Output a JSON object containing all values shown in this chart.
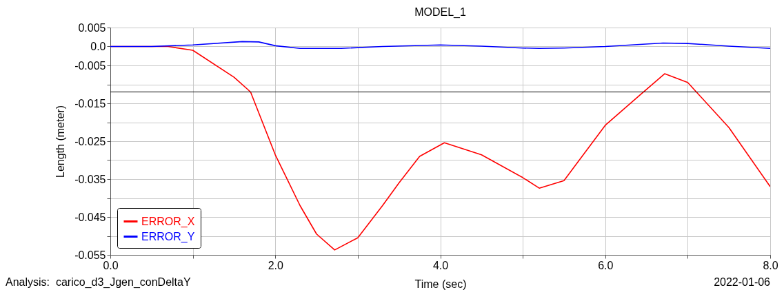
{
  "chart_data": {
    "type": "line",
    "title": "MODEL_1",
    "xlabel": "Time (sec)",
    "ylabel": "Length (meter)",
    "annotations": [
      "Analysis:  carico_d3_Jgen_conDeltaY",
      "2022-01-06"
    ],
    "xlim": [
      0,
      8
    ],
    "ylim": [
      -0.055,
      0.005
    ],
    "xticks": [
      {
        "value": 0,
        "label": "0.0"
      },
      {
        "value": 1,
        "label": null
      },
      {
        "value": 2,
        "label": "2.0"
      },
      {
        "value": 3,
        "label": null
      },
      {
        "value": 4,
        "label": "4.0"
      },
      {
        "value": 5,
        "label": null
      },
      {
        "value": 6,
        "label": "6.0"
      },
      {
        "value": 7,
        "label": null
      },
      {
        "value": 8,
        "label": "8.0"
      }
    ],
    "yticks": [
      0.005,
      {
        "value": 0,
        "label": "0.0"
      },
      -0.005,
      {
        "value": -0.01,
        "label": null
      },
      -0.015,
      {
        "value": -0.02,
        "label": null
      },
      -0.025,
      {
        "value": -0.03,
        "label": null
      },
      -0.035,
      {
        "value": -0.04,
        "label": null
      },
      -0.045,
      {
        "value": -0.05,
        "label": null
      },
      -0.055
    ],
    "grid": true,
    "legend": "bottom left",
    "marker": "none",
    "line_style": "solid",
    "ref_lines": [
      {
        "axis": "y",
        "value": -0.012,
        "color": "#000000"
      }
    ],
    "series": [
      {
        "name": "ERROR_X",
        "color": "#ff0000",
        "x": [
          0,
          0.5,
          0.7,
          1,
          1.5,
          1.7,
          2,
          2.3,
          2.5,
          2.72,
          3,
          3.3,
          3.5,
          3.75,
          4.05,
          4.5,
          5,
          5.2,
          5.5,
          6,
          6.4,
          6.72,
          7,
          7.5,
          8
        ],
        "values": [
          0,
          0,
          0,
          -0.001,
          -0.0081,
          -0.012,
          -0.0286,
          -0.042,
          -0.0495,
          -0.0537,
          -0.0505,
          -0.042,
          -0.036,
          -0.029,
          -0.0254,
          -0.0286,
          -0.0346,
          -0.0374,
          -0.0354,
          -0.0208,
          -0.0132,
          -0.0072,
          -0.0095,
          -0.0214,
          -0.037
        ]
      },
      {
        "name": "ERROR_Y",
        "color": "#0000ff",
        "x": [
          0,
          0.5,
          1,
          1.6,
          1.8,
          2,
          2.3,
          2.8,
          3.3,
          4,
          4.5,
          5,
          5.2,
          5.5,
          6,
          6.7,
          7,
          7.5,
          8
        ],
        "values": [
          0,
          0,
          0.0004,
          0.0013,
          0.0012,
          0.0002,
          -0.0005,
          -0.0005,
          0,
          0.0004,
          0.0001,
          -0.0004,
          -0.0005,
          -0.0004,
          0,
          0.0009,
          0.0008,
          0.0001,
          -0.0005
        ]
      }
    ]
  }
}
